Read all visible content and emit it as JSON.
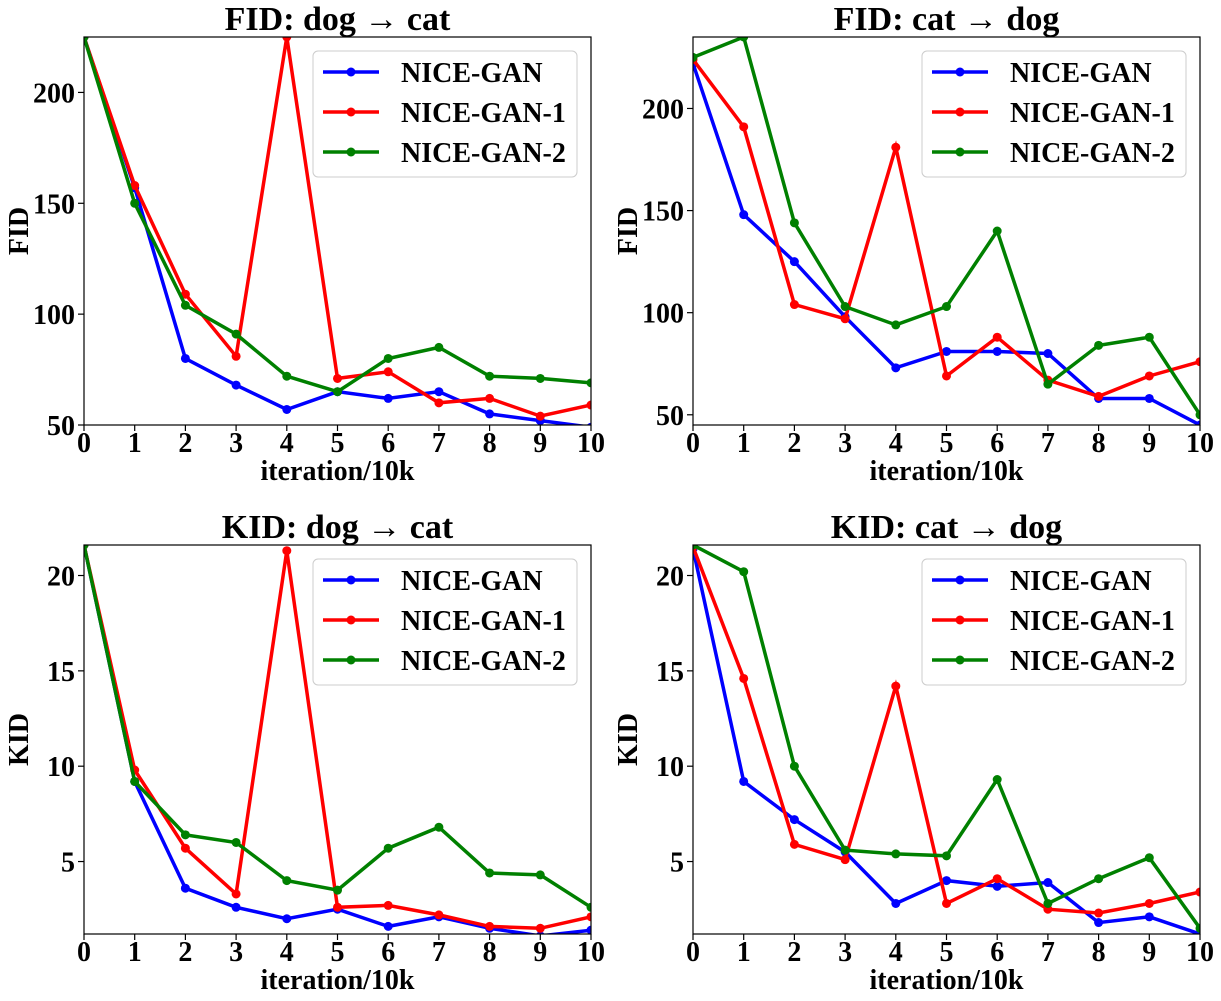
{
  "chart_data": [
    {
      "type": "line",
      "title": "FID: dog → cat",
      "xlabel": "iteration/10k",
      "ylabel": "FID",
      "x": [
        0,
        1,
        2,
        3,
        4,
        5,
        6,
        7,
        8,
        9,
        10
      ],
      "xlim": [
        0,
        10
      ],
      "ylim": [
        50,
        225
      ],
      "yticks": [
        50,
        100,
        150,
        200
      ],
      "legend": "top-right",
      "grid": false,
      "series": [
        {
          "name": "NICE-GAN",
          "color": "#0000ff",
          "values": [
            225,
            157,
            80,
            68,
            57,
            65,
            62,
            65,
            55,
            52,
            49
          ]
        },
        {
          "name": "NICE-GAN-1",
          "color": "#ff0000",
          "values": [
            225,
            158,
            109,
            81,
            225,
            71,
            74,
            60,
            62,
            54,
            59
          ]
        },
        {
          "name": "NICE-GAN-2",
          "color": "#008000",
          "values": [
            225,
            150,
            104,
            91,
            72,
            65,
            80,
            85,
            72,
            71,
            69
          ]
        }
      ]
    },
    {
      "type": "line",
      "title": "FID: cat → dog",
      "xlabel": "iteration/10k",
      "ylabel": "FID",
      "x": [
        0,
        1,
        2,
        3,
        4,
        5,
        6,
        7,
        8,
        9,
        10
      ],
      "xlim": [
        0,
        10
      ],
      "ylim": [
        45,
        235
      ],
      "yticks": [
        50,
        100,
        150,
        200
      ],
      "legend": "top-right",
      "grid": false,
      "series": [
        {
          "name": "NICE-GAN",
          "color": "#0000ff",
          "values": [
            222,
            148,
            125,
            98,
            73,
            81,
            81,
            80,
            58,
            58,
            45
          ]
        },
        {
          "name": "NICE-GAN-1",
          "color": "#ff0000",
          "values": [
            224,
            191,
            104,
            97,
            181,
            69,
            88,
            67,
            59,
            69,
            76
          ]
        },
        {
          "name": "NICE-GAN-2",
          "color": "#008000",
          "values": [
            225,
            235,
            144,
            103,
            94,
            103,
            140,
            65,
            84,
            88,
            50
          ]
        }
      ]
    },
    {
      "type": "line",
      "title": "KID: dog → cat",
      "xlabel": "iteration/10k",
      "ylabel": "KID",
      "x": [
        0,
        1,
        2,
        3,
        4,
        5,
        6,
        7,
        8,
        9,
        10
      ],
      "xlim": [
        0,
        10
      ],
      "ylim": [
        1.2,
        21.6
      ],
      "yticks": [
        5,
        10,
        15,
        20
      ],
      "legend": "top-right",
      "grid": false,
      "series": [
        {
          "name": "NICE-GAN",
          "color": "#0000ff",
          "values": [
            21.6,
            9.2,
            3.6,
            2.6,
            2.0,
            2.5,
            1.6,
            2.1,
            1.5,
            1.1,
            1.4
          ]
        },
        {
          "name": "NICE-GAN-1",
          "color": "#ff0000",
          "values": [
            21.6,
            9.8,
            5.7,
            3.3,
            21.3,
            2.6,
            2.7,
            2.2,
            1.6,
            1.5,
            2.1
          ]
        },
        {
          "name": "NICE-GAN-2",
          "color": "#008000",
          "values": [
            21.6,
            9.2,
            6.4,
            6.0,
            4.0,
            3.5,
            5.7,
            6.8,
            4.4,
            4.3,
            2.6
          ]
        }
      ]
    },
    {
      "type": "line",
      "title": "KID: cat → dog",
      "xlabel": "iteration/10k",
      "ylabel": "KID",
      "x": [
        0,
        1,
        2,
        3,
        4,
        5,
        6,
        7,
        8,
        9,
        10
      ],
      "xlim": [
        0,
        10
      ],
      "ylim": [
        1.2,
        21.6
      ],
      "yticks": [
        5,
        10,
        15,
        20
      ],
      "legend": "top-right",
      "grid": false,
      "series": [
        {
          "name": "NICE-GAN",
          "color": "#0000ff",
          "values": [
            21.4,
            9.2,
            7.2,
            5.5,
            2.8,
            4.0,
            3.7,
            3.9,
            1.8,
            2.1,
            1.2
          ]
        },
        {
          "name": "NICE-GAN-1",
          "color": "#ff0000",
          "values": [
            21.5,
            14.6,
            5.9,
            5.1,
            14.2,
            2.8,
            4.1,
            2.5,
            2.3,
            2.8,
            3.4
          ]
        },
        {
          "name": "NICE-GAN-2",
          "color": "#008000",
          "values": [
            21.6,
            20.2,
            10.0,
            5.6,
            5.4,
            5.3,
            9.3,
            2.8,
            4.1,
            5.2,
            1.5
          ]
        }
      ]
    }
  ]
}
